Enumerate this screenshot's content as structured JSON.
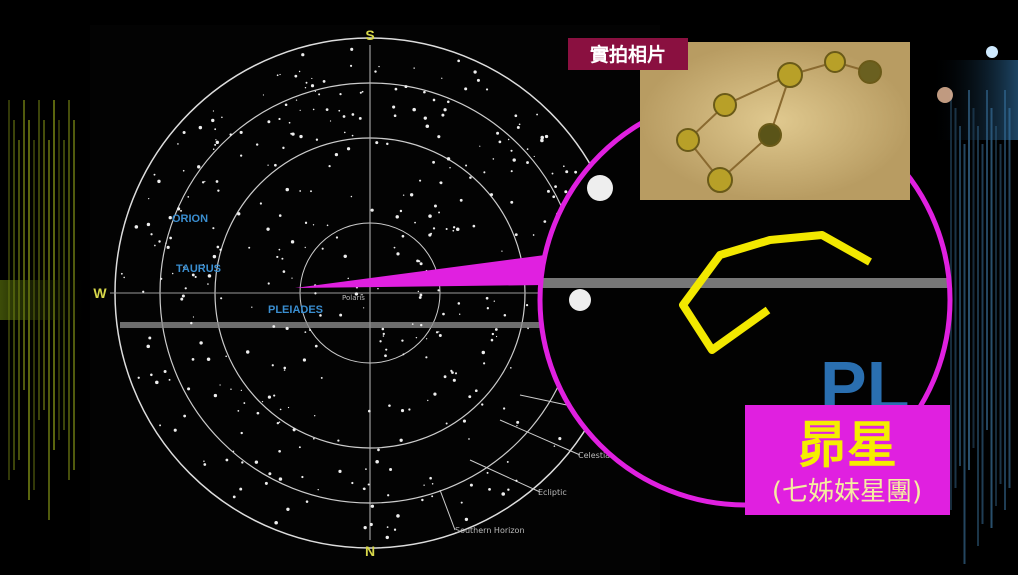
{
  "compass": {
    "south": "S",
    "north": "N",
    "west": "W"
  },
  "constellations": [
    "ORION",
    "TAURUS",
    "PLEIADES"
  ],
  "polaris": "Polaris",
  "chart_lines": [
    "Celestial E",
    "Ecliptic",
    "Southern Horizon"
  ],
  "photo_caption": "實拍相片",
  "title": "昴星",
  "subtitle": "(七姊妹星團)"
}
